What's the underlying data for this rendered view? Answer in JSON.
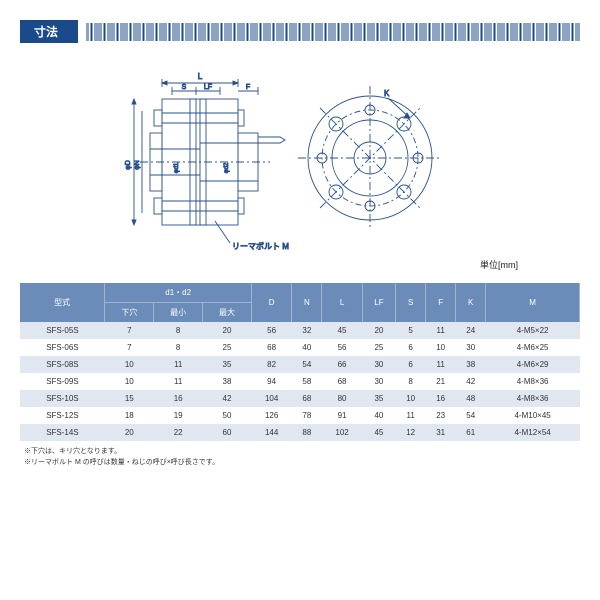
{
  "header": {
    "title": "寸法"
  },
  "diagram": {
    "labels": {
      "L": "L",
      "S": "S",
      "LF": "LF",
      "F": "F",
      "phiD": "φD",
      "phiN": "φN",
      "phid1": "φd1",
      "phid2": "φd2",
      "K": "K",
      "reamer": "リーマボルト M"
    },
    "stroke": "#285090",
    "bg": "#ffffff"
  },
  "unit_label": "単位[mm]",
  "table": {
    "columns": {
      "model": "型式",
      "d1d2": "d1・d2",
      "sub_pilot": "下穴",
      "sub_min": "最小",
      "sub_max": "最大",
      "D": "D",
      "N": "N",
      "L": "L",
      "LF": "LF",
      "S": "S",
      "F": "F",
      "K": "K",
      "M": "M"
    },
    "rows": [
      {
        "model": "SFS-05S",
        "pilot": "7",
        "min": "8",
        "max": "20",
        "D": "56",
        "N": "32",
        "L": "45",
        "LF": "20",
        "S": "5",
        "F": "11",
        "K": "24",
        "M": "4-M5×22"
      },
      {
        "model": "SFS-06S",
        "pilot": "7",
        "min": "8",
        "max": "25",
        "D": "68",
        "N": "40",
        "L": "56",
        "LF": "25",
        "S": "6",
        "F": "10",
        "K": "30",
        "M": "4-M6×25"
      },
      {
        "model": "SFS-08S",
        "pilot": "10",
        "min": "11",
        "max": "35",
        "D": "82",
        "N": "54",
        "L": "66",
        "LF": "30",
        "S": "6",
        "F": "11",
        "K": "38",
        "M": "4-M6×29"
      },
      {
        "model": "SFS-09S",
        "pilot": "10",
        "min": "11",
        "max": "38",
        "D": "94",
        "N": "58",
        "L": "68",
        "LF": "30",
        "S": "8",
        "F": "21",
        "K": "42",
        "M": "4-M8×36"
      },
      {
        "model": "SFS-10S",
        "pilot": "15",
        "min": "16",
        "max": "42",
        "D": "104",
        "N": "68",
        "L": "80",
        "LF": "35",
        "S": "10",
        "F": "16",
        "K": "48",
        "M": "4-M8×36"
      },
      {
        "model": "SFS-12S",
        "pilot": "18",
        "min": "19",
        "max": "50",
        "D": "126",
        "N": "78",
        "L": "91",
        "LF": "40",
        "S": "11",
        "F": "23",
        "K": "54",
        "M": "4-M10×45"
      },
      {
        "model": "SFS-14S",
        "pilot": "20",
        "min": "22",
        "max": "60",
        "D": "144",
        "N": "88",
        "L": "102",
        "LF": "45",
        "S": "12",
        "F": "31",
        "K": "61",
        "M": "4-M12×54"
      }
    ]
  },
  "notes": [
    "※下穴は、キリ穴となります。",
    "※リーマボルト M の呼びは数量・ねじの呼び×呼び長さです。"
  ]
}
